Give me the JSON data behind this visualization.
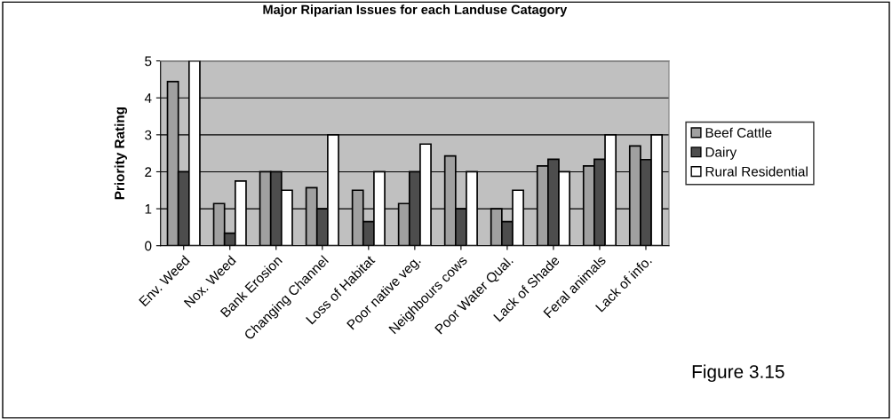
{
  "chart_data": {
    "type": "bar",
    "title": "Major Riparian Issues for each Landuse Catagory",
    "ylabel": "Priority Rating",
    "categories": [
      "Env. Weed",
      "Nox. Weed",
      "Bank Erosion",
      "Changing Channel",
      "Loss of Habitat",
      "Poor native veg.",
      "Neighbours cows",
      "Poor Water Qual.",
      "Lack of Shade",
      "Feral animals",
      "Lack of info."
    ],
    "series": [
      {
        "name": "Beef Cattle",
        "color": "#a0a0a0",
        "values": [
          4.44,
          1.14,
          2,
          1.57,
          1.5,
          1.14,
          2.43,
          1,
          2.16,
          2.16,
          2.7
        ]
      },
      {
        "name": "Dairy",
        "color": "#4d4d4d",
        "values": [
          2,
          0.34,
          2,
          1,
          0.65,
          2,
          1,
          0.65,
          2.34,
          2.34,
          2.33
        ]
      },
      {
        "name": "Rural Residential",
        "color": "#ffffff",
        "values": [
          5,
          1.75,
          1.5,
          3,
          2,
          2.75,
          2,
          1.5,
          2,
          3,
          3
        ]
      }
    ],
    "ylim": [
      0,
      5
    ],
    "yticks": [
      0,
      1,
      2,
      3,
      4,
      5
    ],
    "grid": "y",
    "legend": "right",
    "annotations": [
      "Figure 3.15"
    ]
  }
}
